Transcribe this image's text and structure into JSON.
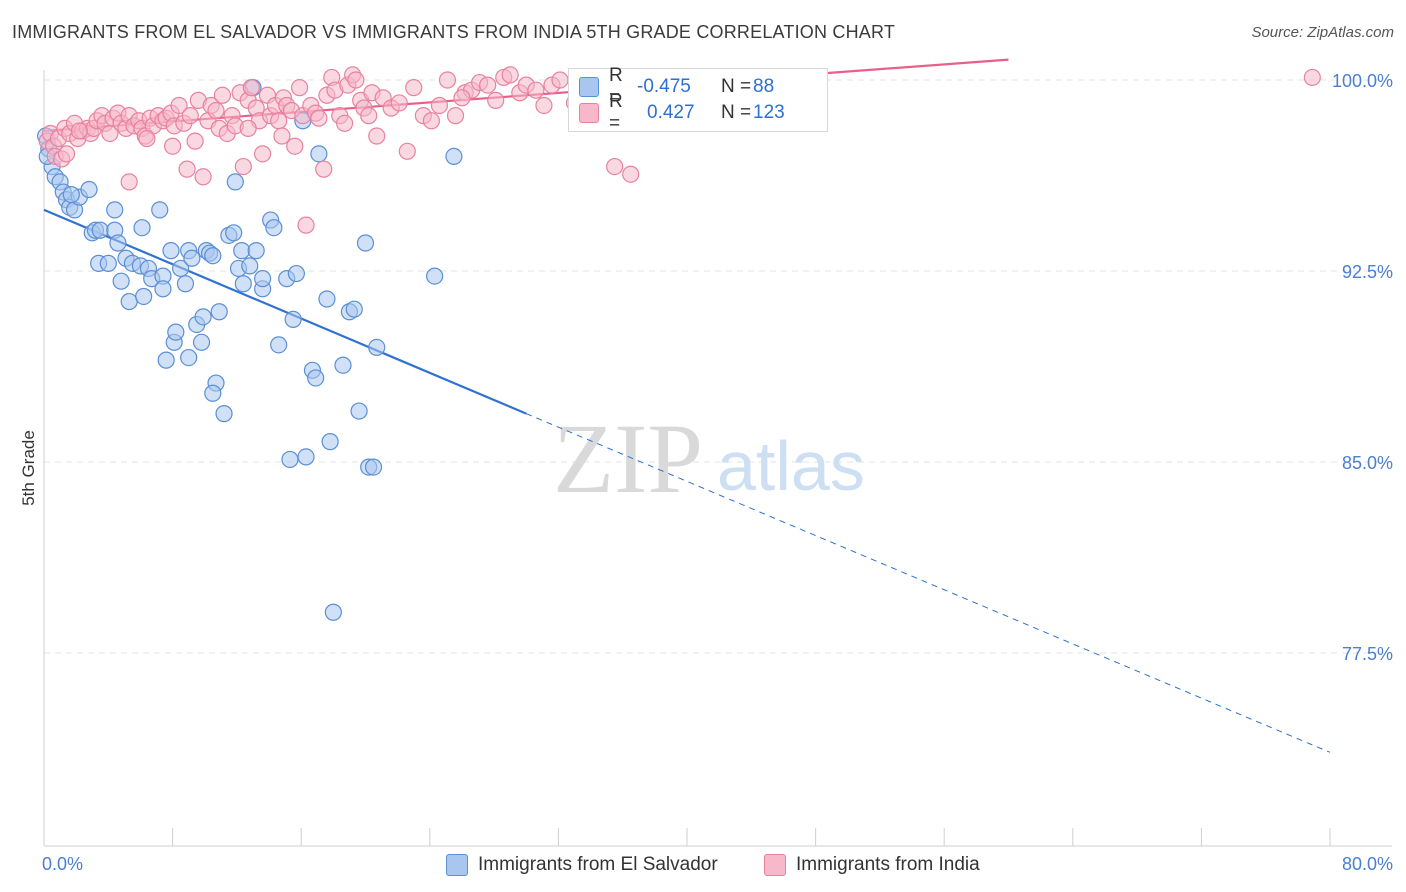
{
  "title": "IMMIGRANTS FROM EL SALVADOR VS IMMIGRANTS FROM INDIA 5TH GRADE CORRELATION CHART",
  "source": "Source: ZipAtlas.com",
  "watermark": {
    "zip": "ZIP",
    "atlas": "atlas"
  },
  "legend": {
    "series1": {
      "r_label": "R =",
      "r_value": "-0.475",
      "n_label": "N =",
      "n_value": "88"
    },
    "series2": {
      "r_label": "R =",
      "r_value": "0.427",
      "n_label": "N =",
      "n_value": "123"
    }
  },
  "colors": {
    "blue_fill": "#a9c7ee",
    "blue_stroke": "#5b8fd6",
    "blue_line": "#2f72d0",
    "pink_fill": "#f6b8ca",
    "pink_stroke": "#e8829f",
    "pink_line": "#e8608a",
    "grid": "#e3e3e3",
    "tick_label": "#4a7fd0"
  },
  "chart_data": {
    "type": "scatter",
    "title": "IMMIGRANTS FROM EL SALVADOR VS IMMIGRANTS FROM INDIA 5TH GRADE CORRELATION CHART",
    "xlabel": "",
    "ylabel": "5th Grade",
    "xlim": [
      0,
      80
    ],
    "ylim": [
      71.5,
      102
    ],
    "x_tick_labels": [
      "0.0%",
      "80.0%"
    ],
    "y_ticks": [
      77.5,
      85.0,
      92.5,
      100.0
    ],
    "y_tick_labels": [
      "77.5%",
      "85.0%",
      "92.5%",
      "100.0%"
    ],
    "grid": "horizontal dashed",
    "legend_position": "top-center",
    "series": [
      {
        "name": "Immigrants from El Salvador",
        "color": "#5b8fd6",
        "trend": {
          "x": [
            0,
            30
          ],
          "y": [
            94.9,
            86.9
          ],
          "dashed_to": [
            80,
            73.6
          ]
        },
        "points": [
          [
            0.1,
            97.8
          ],
          [
            0.3,
            97.3
          ],
          [
            0.5,
            96.6
          ],
          [
            0.7,
            96.2
          ],
          [
            1.0,
            96.0
          ],
          [
            1.2,
            95.6
          ],
          [
            1.4,
            95.3
          ],
          [
            1.6,
            95.0
          ],
          [
            1.9,
            94.9
          ],
          [
            2.2,
            95.4
          ],
          [
            2.8,
            95.7
          ],
          [
            3.0,
            94.0
          ],
          [
            3.2,
            94.1
          ],
          [
            3.5,
            94.1
          ],
          [
            4.4,
            94.1
          ],
          [
            4.6,
            93.6
          ],
          [
            4.4,
            94.9
          ],
          [
            3.4,
            92.8
          ],
          [
            4.0,
            92.8
          ],
          [
            4.8,
            92.1
          ],
          [
            5.1,
            93.0
          ],
          [
            5.5,
            92.8
          ],
          [
            5.3,
            91.3
          ],
          [
            6.0,
            92.7
          ],
          [
            6.1,
            94.2
          ],
          [
            6.2,
            91.5
          ],
          [
            6.5,
            92.6
          ],
          [
            6.7,
            92.2
          ],
          [
            7.2,
            94.9
          ],
          [
            7.4,
            92.3
          ],
          [
            7.9,
            93.3
          ],
          [
            7.6,
            89.0
          ],
          [
            7.4,
            91.8
          ],
          [
            8.1,
            89.7
          ],
          [
            8.2,
            90.1
          ],
          [
            8.5,
            92.6
          ],
          [
            8.8,
            92.0
          ],
          [
            9.0,
            93.3
          ],
          [
            9.2,
            93.0
          ],
          [
            9.5,
            90.4
          ],
          [
            9.0,
            89.1
          ],
          [
            9.8,
            89.7
          ],
          [
            9.9,
            90.7
          ],
          [
            10.1,
            93.3
          ],
          [
            10.3,
            93.2
          ],
          [
            10.5,
            93.1
          ],
          [
            10.7,
            88.1
          ],
          [
            10.5,
            87.7
          ],
          [
            10.9,
            90.9
          ],
          [
            11.2,
            86.9
          ],
          [
            11.5,
            93.9
          ],
          [
            11.8,
            94.0
          ],
          [
            11.9,
            96.0
          ],
          [
            12.1,
            92.6
          ],
          [
            12.3,
            93.3
          ],
          [
            12.4,
            92.0
          ],
          [
            12.8,
            92.7
          ],
          [
            13.2,
            93.3
          ],
          [
            13.6,
            91.8
          ],
          [
            13.0,
            99.7
          ],
          [
            13.6,
            92.2
          ],
          [
            14.1,
            94.5
          ],
          [
            14.3,
            94.2
          ],
          [
            14.6,
            89.6
          ],
          [
            15.1,
            92.2
          ],
          [
            15.5,
            90.6
          ],
          [
            15.7,
            92.4
          ],
          [
            15.3,
            85.1
          ],
          [
            16.1,
            98.4
          ],
          [
            16.3,
            85.2
          ],
          [
            16.7,
            88.6
          ],
          [
            16.9,
            88.3
          ],
          [
            17.1,
            97.1
          ],
          [
            17.6,
            91.4
          ],
          [
            17.8,
            85.8
          ],
          [
            18.0,
            79.1
          ],
          [
            18.6,
            88.8
          ],
          [
            19.0,
            90.9
          ],
          [
            19.3,
            91.0
          ],
          [
            19.6,
            87.0
          ],
          [
            20.0,
            93.6
          ],
          [
            20.2,
            84.8
          ],
          [
            20.5,
            84.8
          ],
          [
            20.7,
            89.5
          ],
          [
            24.3,
            92.3
          ],
          [
            25.5,
            97.0
          ],
          [
            0.2,
            97.0
          ],
          [
            1.7,
            95.5
          ]
        ]
      },
      {
        "name": "Immigrants from India",
        "color": "#e8829f",
        "trend": {
          "x": [
            0,
            60
          ],
          "y": [
            98.0,
            100.8
          ]
        },
        "points": [
          [
            0.2,
            97.6
          ],
          [
            0.4,
            97.9
          ],
          [
            0.6,
            97.4
          ],
          [
            0.7,
            97.0
          ],
          [
            0.9,
            97.7
          ],
          [
            1.1,
            96.9
          ],
          [
            1.3,
            98.1
          ],
          [
            1.6,
            97.9
          ],
          [
            1.9,
            98.3
          ],
          [
            2.1,
            97.7
          ],
          [
            2.4,
            98.0
          ],
          [
            2.7,
            98.1
          ],
          [
            2.9,
            97.9
          ],
          [
            3.1,
            98.1
          ],
          [
            3.3,
            98.4
          ],
          [
            3.6,
            98.6
          ],
          [
            3.8,
            98.3
          ],
          [
            4.1,
            97.9
          ],
          [
            4.3,
            98.5
          ],
          [
            4.6,
            98.7
          ],
          [
            4.8,
            98.3
          ],
          [
            5.1,
            98.1
          ],
          [
            5.3,
            98.6
          ],
          [
            5.6,
            98.2
          ],
          [
            5.3,
            96.0
          ],
          [
            5.9,
            98.4
          ],
          [
            6.1,
            98.1
          ],
          [
            6.3,
            97.8
          ],
          [
            6.6,
            98.5
          ],
          [
            6.8,
            98.2
          ],
          [
            7.1,
            98.6
          ],
          [
            7.4,
            98.4
          ],
          [
            7.6,
            98.5
          ],
          [
            7.9,
            98.7
          ],
          [
            8.1,
            98.2
          ],
          [
            8.4,
            99.0
          ],
          [
            8.7,
            98.3
          ],
          [
            8.9,
            96.5
          ],
          [
            9.1,
            98.6
          ],
          [
            9.4,
            97.6
          ],
          [
            9.6,
            99.2
          ],
          [
            9.9,
            96.2
          ],
          [
            10.2,
            98.4
          ],
          [
            10.4,
            99.0
          ],
          [
            10.7,
            98.8
          ],
          [
            10.9,
            98.1
          ],
          [
            11.1,
            99.4
          ],
          [
            11.4,
            97.9
          ],
          [
            11.7,
            98.6
          ],
          [
            11.9,
            98.2
          ],
          [
            12.2,
            99.5
          ],
          [
            12.4,
            96.6
          ],
          [
            12.7,
            99.2
          ],
          [
            12.9,
            99.7
          ],
          [
            13.2,
            98.9
          ],
          [
            13.4,
            98.4
          ],
          [
            13.6,
            97.1
          ],
          [
            13.9,
            99.4
          ],
          [
            14.1,
            98.6
          ],
          [
            14.4,
            99.0
          ],
          [
            14.6,
            98.4
          ],
          [
            14.9,
            99.3
          ],
          [
            15.1,
            99.0
          ],
          [
            15.4,
            98.8
          ],
          [
            15.6,
            97.4
          ],
          [
            15.9,
            99.7
          ],
          [
            16.1,
            98.6
          ],
          [
            16.3,
            94.3
          ],
          [
            16.6,
            99.0
          ],
          [
            16.9,
            98.7
          ],
          [
            17.1,
            98.5
          ],
          [
            17.4,
            96.5
          ],
          [
            17.6,
            99.4
          ],
          [
            17.9,
            100.1
          ],
          [
            18.1,
            99.6
          ],
          [
            18.4,
            98.6
          ],
          [
            18.7,
            98.3
          ],
          [
            18.9,
            99.8
          ],
          [
            19.2,
            100.2
          ],
          [
            19.4,
            100.0
          ],
          [
            19.7,
            99.2
          ],
          [
            19.9,
            98.9
          ],
          [
            20.2,
            98.6
          ],
          [
            20.4,
            99.5
          ],
          [
            20.7,
            97.8
          ],
          [
            21.1,
            99.3
          ],
          [
            21.6,
            98.9
          ],
          [
            22.1,
            99.1
          ],
          [
            22.6,
            97.2
          ],
          [
            23.0,
            99.7
          ],
          [
            23.6,
            98.6
          ],
          [
            24.1,
            98.4
          ],
          [
            24.6,
            99.0
          ],
          [
            25.1,
            100.0
          ],
          [
            25.6,
            98.6
          ],
          [
            26.2,
            99.5
          ],
          [
            26.6,
            99.6
          ],
          [
            27.1,
            99.9
          ],
          [
            27.6,
            99.8
          ],
          [
            28.1,
            99.2
          ],
          [
            28.6,
            100.1
          ],
          [
            29.0,
            100.2
          ],
          [
            29.6,
            99.5
          ],
          [
            30.0,
            99.8
          ],
          [
            30.6,
            99.6
          ],
          [
            31.1,
            99.0
          ],
          [
            31.6,
            99.8
          ],
          [
            32.1,
            100.0
          ],
          [
            33.0,
            99.1
          ],
          [
            34.0,
            99.6
          ],
          [
            35.1,
            99.4
          ],
          [
            36.1,
            99.0
          ],
          [
            37.0,
            99.6
          ],
          [
            35.5,
            96.6
          ],
          [
            36.5,
            96.3
          ],
          [
            78.9,
            100.1
          ],
          [
            1.4,
            97.1
          ],
          [
            2.2,
            98.0
          ],
          [
            6.4,
            97.7
          ],
          [
            8.0,
            97.4
          ],
          [
            14.8,
            97.8
          ],
          [
            26.0,
            99.3
          ],
          [
            12.7,
            98.1
          ]
        ]
      }
    ]
  },
  "bottom_legend": {
    "series1_label": "Immigrants from El Salvador",
    "series2_label": "Immigrants from India"
  }
}
